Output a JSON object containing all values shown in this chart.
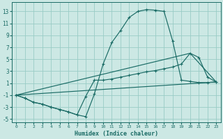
{
  "xlabel": "Humidex (Indice chaleur)",
  "xlim": [
    -0.5,
    23.5
  ],
  "ylim": [
    -5.5,
    14.5
  ],
  "xticks": [
    0,
    1,
    2,
    3,
    4,
    5,
    6,
    7,
    8,
    9,
    10,
    11,
    12,
    13,
    14,
    15,
    16,
    17,
    18,
    19,
    20,
    21,
    22,
    23
  ],
  "yticks": [
    -5,
    -3,
    -1,
    1,
    3,
    5,
    7,
    9,
    11,
    13
  ],
  "bg_color": "#cce8e4",
  "grid_color": "#99ccc6",
  "line_color": "#1a6b65",
  "line1_x": [
    0,
    1,
    2,
    3,
    4,
    5,
    6,
    7,
    8,
    9,
    10,
    11,
    12,
    13,
    14,
    15,
    16,
    17,
    18,
    19,
    20,
    21,
    22,
    23
  ],
  "line1_y": [
    -1.0,
    -1.5,
    -2.2,
    -2.5,
    -3.0,
    -3.4,
    -3.8,
    -4.3,
    -4.6,
    -0.8,
    4.2,
    7.8,
    9.8,
    12.0,
    13.0,
    13.3,
    13.2,
    13.0,
    8.0,
    1.5,
    1.3,
    1.1,
    1.1,
    1.2
  ],
  "line2_x": [
    0,
    1,
    2,
    3,
    4,
    5,
    6,
    7,
    8,
    9,
    10,
    11,
    12,
    13,
    14,
    15,
    16,
    17,
    18,
    19,
    20,
    21,
    22,
    23
  ],
  "line2_y": [
    -1.0,
    -1.5,
    -2.2,
    -2.5,
    -3.0,
    -3.4,
    -3.8,
    -4.3,
    -1.2,
    1.5,
    1.5,
    1.7,
    2.0,
    2.3,
    2.6,
    2.9,
    3.1,
    3.4,
    3.7,
    4.2,
    6.0,
    5.3,
    2.0,
    1.2
  ],
  "line3_x": [
    0,
    23
  ],
  "line3_y": [
    -1.0,
    1.2
  ],
  "line4_x": [
    0,
    20,
    23
  ],
  "line4_y": [
    -1.0,
    6.0,
    1.2
  ]
}
